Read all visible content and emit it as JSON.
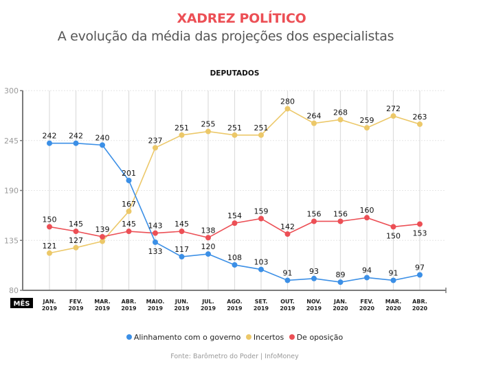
{
  "header": {
    "title": "XADREZ POLÍTICO",
    "subtitle": "A evolução da média das projeções dos especialistas"
  },
  "colors": {
    "title": "#ec4f55",
    "governo": "#3b8fe6",
    "incertos": "#ecc869",
    "oposicao": "#ec4f55",
    "grid": "#dcdcdc",
    "axis": "#7a7a7a"
  },
  "chart_data": {
    "type": "line",
    "title": "DEPUTADOS",
    "xlabel": "MÊS",
    "ylabel": "",
    "ylim": [
      80,
      300
    ],
    "yticks": [
      80,
      135,
      190,
      245,
      300
    ],
    "grid": true,
    "legend_position": "bottom",
    "categories": [
      [
        "JAN.",
        "2019"
      ],
      [
        "FEV.",
        "2019"
      ],
      [
        "MAR.",
        "2019"
      ],
      [
        "ABR.",
        "2019"
      ],
      [
        "MAIO.",
        "2019"
      ],
      [
        "JUN.",
        "2019"
      ],
      [
        "JUL.",
        "2019"
      ],
      [
        "AGO.",
        "2019"
      ],
      [
        "SET.",
        "2019"
      ],
      [
        "OUT.",
        "2019"
      ],
      [
        "NOV.",
        "2019"
      ],
      [
        "JAN.",
        "2020"
      ],
      [
        "FEV.",
        "2020"
      ],
      [
        "MAR.",
        "2020"
      ],
      [
        "ABR.",
        "2020"
      ]
    ],
    "series": [
      {
        "key": "governo",
        "name": "Alinhamento com o governo",
        "values": [
          242,
          242,
          240,
          201,
          133,
          117,
          120,
          108,
          103,
          91,
          93,
          89,
          94,
          91,
          97
        ],
        "labels_shown": [
          true,
          true,
          true,
          true,
          true,
          true,
          true,
          true,
          true,
          true,
          true,
          true,
          true,
          true,
          true
        ],
        "label_pos": [
          "above",
          "above",
          "above",
          "above",
          "below",
          "above",
          "above",
          "above",
          "above",
          "above",
          "above",
          "above",
          "above",
          "above",
          "above"
        ]
      },
      {
        "key": "incertos",
        "name": "Incertos",
        "values": [
          121,
          127,
          134,
          167,
          237,
          251,
          255,
          251,
          251,
          280,
          264,
          268,
          259,
          272,
          263
        ],
        "labels_shown": [
          true,
          true,
          false,
          true,
          true,
          true,
          true,
          true,
          true,
          true,
          true,
          true,
          true,
          true,
          true
        ],
        "label_pos": [
          "above",
          "above",
          "above",
          "above",
          "above",
          "above",
          "above",
          "above",
          "above",
          "above",
          "above",
          "above",
          "above",
          "above",
          "above"
        ]
      },
      {
        "key": "oposicao",
        "name": "De oposição",
        "values": [
          150,
          145,
          139,
          145,
          143,
          145,
          138,
          154,
          159,
          142,
          156,
          156,
          160,
          150,
          153
        ],
        "labels_shown": [
          true,
          true,
          true,
          true,
          true,
          true,
          true,
          true,
          true,
          true,
          true,
          true,
          true,
          true,
          true
        ],
        "label_pos": [
          "above",
          "above",
          "above",
          "above",
          "above",
          "above",
          "above",
          "above",
          "above",
          "above",
          "above",
          "above",
          "above",
          "below",
          "below"
        ]
      }
    ],
    "source": "Fonte: Barômetro do Poder | InfoMoney"
  }
}
